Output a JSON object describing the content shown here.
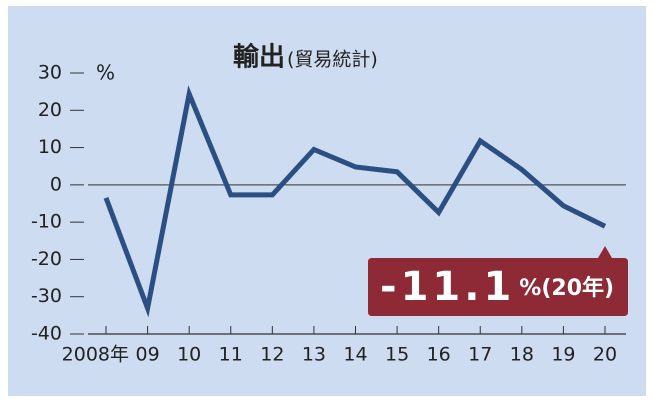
{
  "chart_data": {
    "type": "line",
    "title": "輸出",
    "subtitle": "(貿易統計)",
    "y_unit": "%",
    "categories": [
      "2008年",
      "09",
      "10",
      "11",
      "12",
      "13",
      "14",
      "15",
      "16",
      "17",
      "18",
      "19",
      "20"
    ],
    "series": [
      {
        "name": "輸出",
        "color": "#2b4f82",
        "values": [
          -3.5,
          -33.1,
          24.4,
          -2.7,
          -2.7,
          9.5,
          4.8,
          3.5,
          -7.4,
          11.8,
          4.1,
          -5.6,
          -11.1
        ]
      }
    ],
    "ylim": [
      -40,
      30
    ],
    "yticks": [
      -40,
      -30,
      -20,
      -10,
      0,
      10,
      20,
      30
    ],
    "annotation": {
      "text": "-11.1",
      "suffix": "%(20年)",
      "color": "#8e2a35"
    }
  }
}
